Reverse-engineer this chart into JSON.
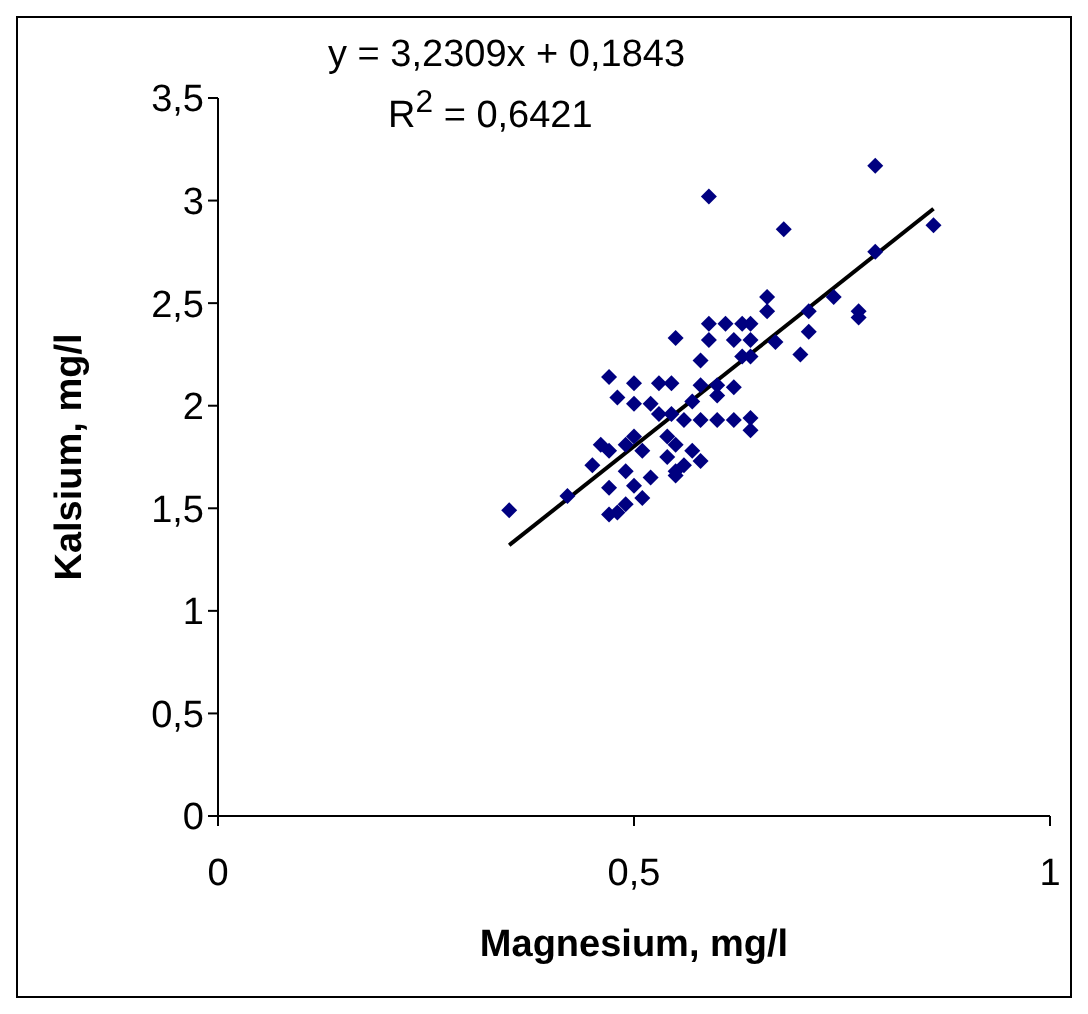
{
  "chart_data": {
    "type": "scatter",
    "xlabel": "Magnesium, mg/l",
    "ylabel": "Kalsium, mg/l",
    "annotations": [
      "y = 3,2309x + 0,1843",
      "R$^{2}$ = 0,6421"
    ],
    "xlim": [
      0,
      1
    ],
    "xticks": [
      0,
      {
        "value": 0.5,
        "label": "0,5"
      },
      1
    ],
    "ylim": [
      0,
      3.5
    ],
    "yticks": [
      0,
      {
        "value": 0.5,
        "label": "0,5"
      },
      1,
      {
        "value": 1.5,
        "label": "1,5"
      },
      2,
      {
        "value": 2.5,
        "label": "2,5"
      },
      3,
      {
        "value": 3.5,
        "label": "3,5"
      }
    ],
    "grid": false,
    "legend": false,
    "series": [
      {
        "marker": "diamond",
        "color": "#000080",
        "x": [
          0.35,
          0.42,
          0.59,
          0.79,
          0.86,
          0.68,
          0.79,
          0.77,
          0.77,
          0.74,
          0.71,
          0.71,
          0.7,
          0.66,
          0.66,
          0.55,
          0.59,
          0.61,
          0.63,
          0.64,
          0.59,
          0.62,
          0.64,
          0.67,
          0.64,
          0.63,
          0.58,
          0.47,
          0.48,
          0.5,
          0.53,
          0.545,
          0.58,
          0.6,
          0.62,
          0.57,
          0.6,
          0.62,
          0.64,
          0.64,
          0.5,
          0.52,
          0.53,
          0.545,
          0.56,
          0.58,
          0.6,
          0.46,
          0.47,
          0.49,
          0.5,
          0.51,
          0.54,
          0.55,
          0.57,
          0.55,
          0.54,
          0.45,
          0.47,
          0.49,
          0.5,
          0.52,
          0.48,
          0.47,
          0.49,
          0.51,
          0.58,
          0.55,
          0.56
        ],
        "values": [
          1.49,
          1.56,
          3.02,
          3.17,
          2.88,
          2.86,
          2.75,
          2.46,
          2.43,
          2.53,
          2.46,
          2.36,
          2.25,
          2.53,
          2.46,
          2.33,
          2.4,
          2.4,
          2.4,
          2.4,
          2.32,
          2.32,
          2.32,
          2.31,
          2.24,
          2.24,
          2.22,
          2.14,
          2.04,
          2.11,
          2.11,
          2.11,
          2.1,
          2.1,
          2.09,
          2.02,
          2.05,
          1.93,
          1.94,
          1.88,
          2.01,
          2.01,
          1.96,
          1.96,
          1.93,
          1.93,
          1.93,
          1.81,
          1.78,
          1.81,
          1.85,
          1.78,
          1.85,
          1.81,
          1.78,
          1.68,
          1.75,
          1.71,
          1.6,
          1.68,
          1.61,
          1.65,
          1.48,
          1.47,
          1.52,
          1.55,
          1.73,
          1.66,
          1.71
        ]
      },
      {
        "type": "line",
        "color": "#000000",
        "x": [
          0.35,
          0.86
        ],
        "values": [
          1.32,
          2.96
        ]
      }
    ]
  }
}
